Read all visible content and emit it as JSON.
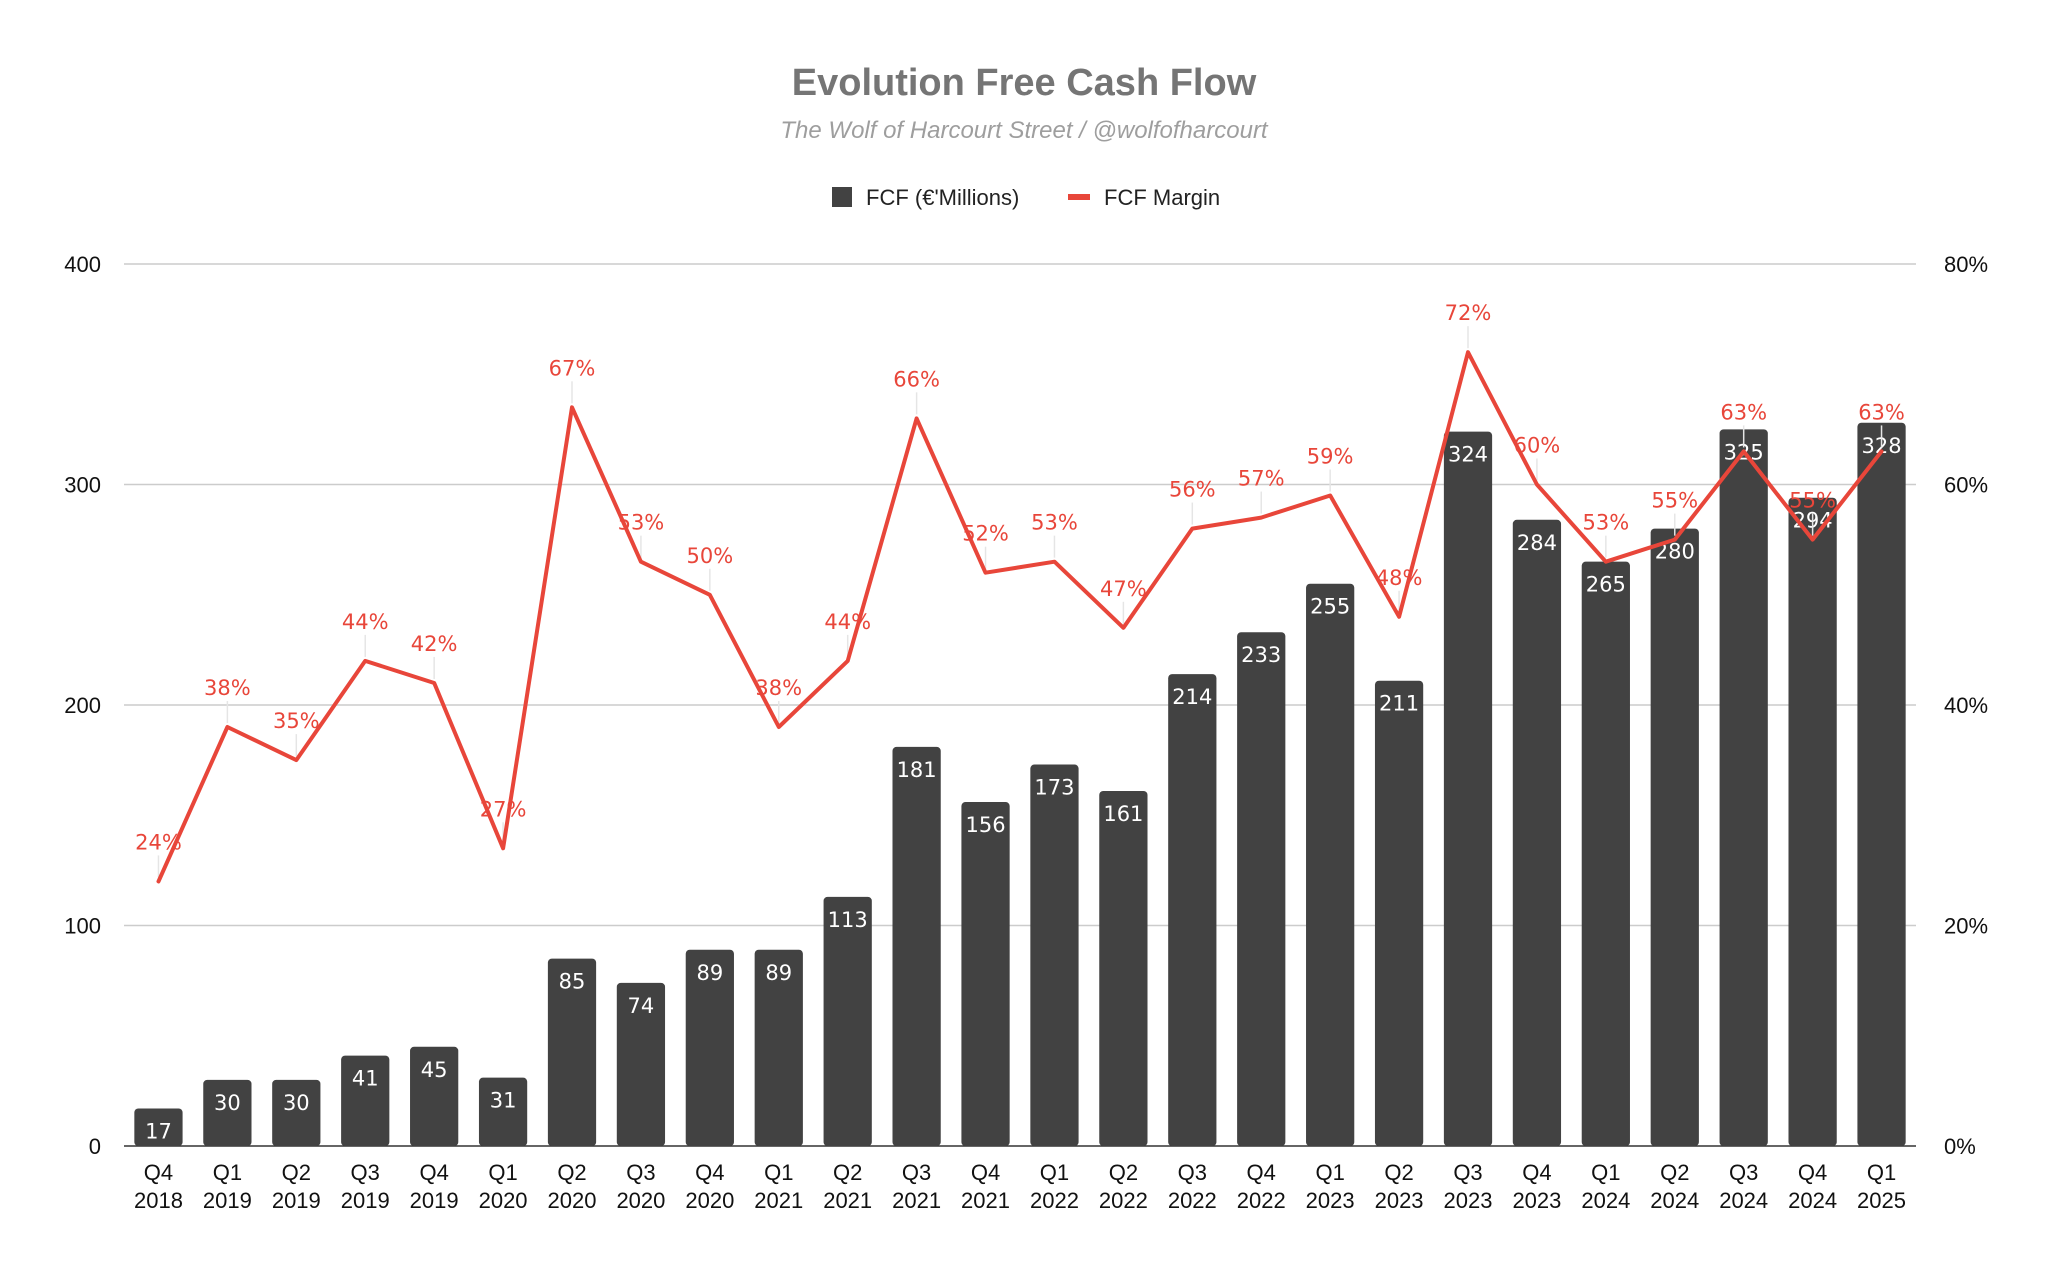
{
  "chart_data": {
    "type": "bar",
    "title": "Evolution Free Cash Flow",
    "subtitle": "The Wolf of Harcourt Street / @wolfofharcourt",
    "categories": [
      [
        "Q4",
        "2018"
      ],
      [
        "Q1",
        "2019"
      ],
      [
        "Q2",
        "2019"
      ],
      [
        "Q3",
        "2019"
      ],
      [
        "Q4",
        "2019"
      ],
      [
        "Q1",
        "2020"
      ],
      [
        "Q2",
        "2020"
      ],
      [
        "Q3",
        "2020"
      ],
      [
        "Q4",
        "2020"
      ],
      [
        "Q1",
        "2021"
      ],
      [
        "Q2",
        "2021"
      ],
      [
        "Q3",
        "2021"
      ],
      [
        "Q4",
        "2021"
      ],
      [
        "Q1",
        "2022"
      ],
      [
        "Q2",
        "2022"
      ],
      [
        "Q3",
        "2022"
      ],
      [
        "Q4",
        "2022"
      ],
      [
        "Q1",
        "2023"
      ],
      [
        "Q2",
        "2023"
      ],
      [
        "Q3",
        "2023"
      ],
      [
        "Q4",
        "2023"
      ],
      [
        "Q1",
        "2024"
      ],
      [
        "Q2",
        "2024"
      ],
      [
        "Q3",
        "2024"
      ],
      [
        "Q4",
        "2024"
      ],
      [
        "Q1",
        "2025"
      ]
    ],
    "series": [
      {
        "name": "FCF (€'Millions)",
        "type": "bar",
        "axis": "left",
        "color": "#424242",
        "values": [
          17,
          30,
          30,
          41,
          45,
          31,
          85,
          74,
          89,
          89,
          113,
          181,
          156,
          173,
          161,
          214,
          233,
          255,
          211,
          324,
          284,
          265,
          280,
          325,
          294,
          328
        ]
      },
      {
        "name": "FCF Margin",
        "type": "line",
        "axis": "right",
        "color": "#e8463a",
        "values": [
          24,
          38,
          35,
          44,
          42,
          27,
          67,
          53,
          50,
          38,
          44,
          66,
          52,
          53,
          47,
          56,
          57,
          59,
          48,
          72,
          60,
          53,
          55,
          63,
          55,
          63
        ]
      }
    ],
    "ylim_left": [
      0,
      400
    ],
    "yticks_left": [
      "0",
      "100",
      "200",
      "300",
      "400"
    ],
    "ylim_right": [
      0,
      80
    ],
    "yticks_right": [
      "0%",
      "20%",
      "40%",
      "60%",
      "80%"
    ],
    "grid": true,
    "legend_position": "top-center"
  }
}
